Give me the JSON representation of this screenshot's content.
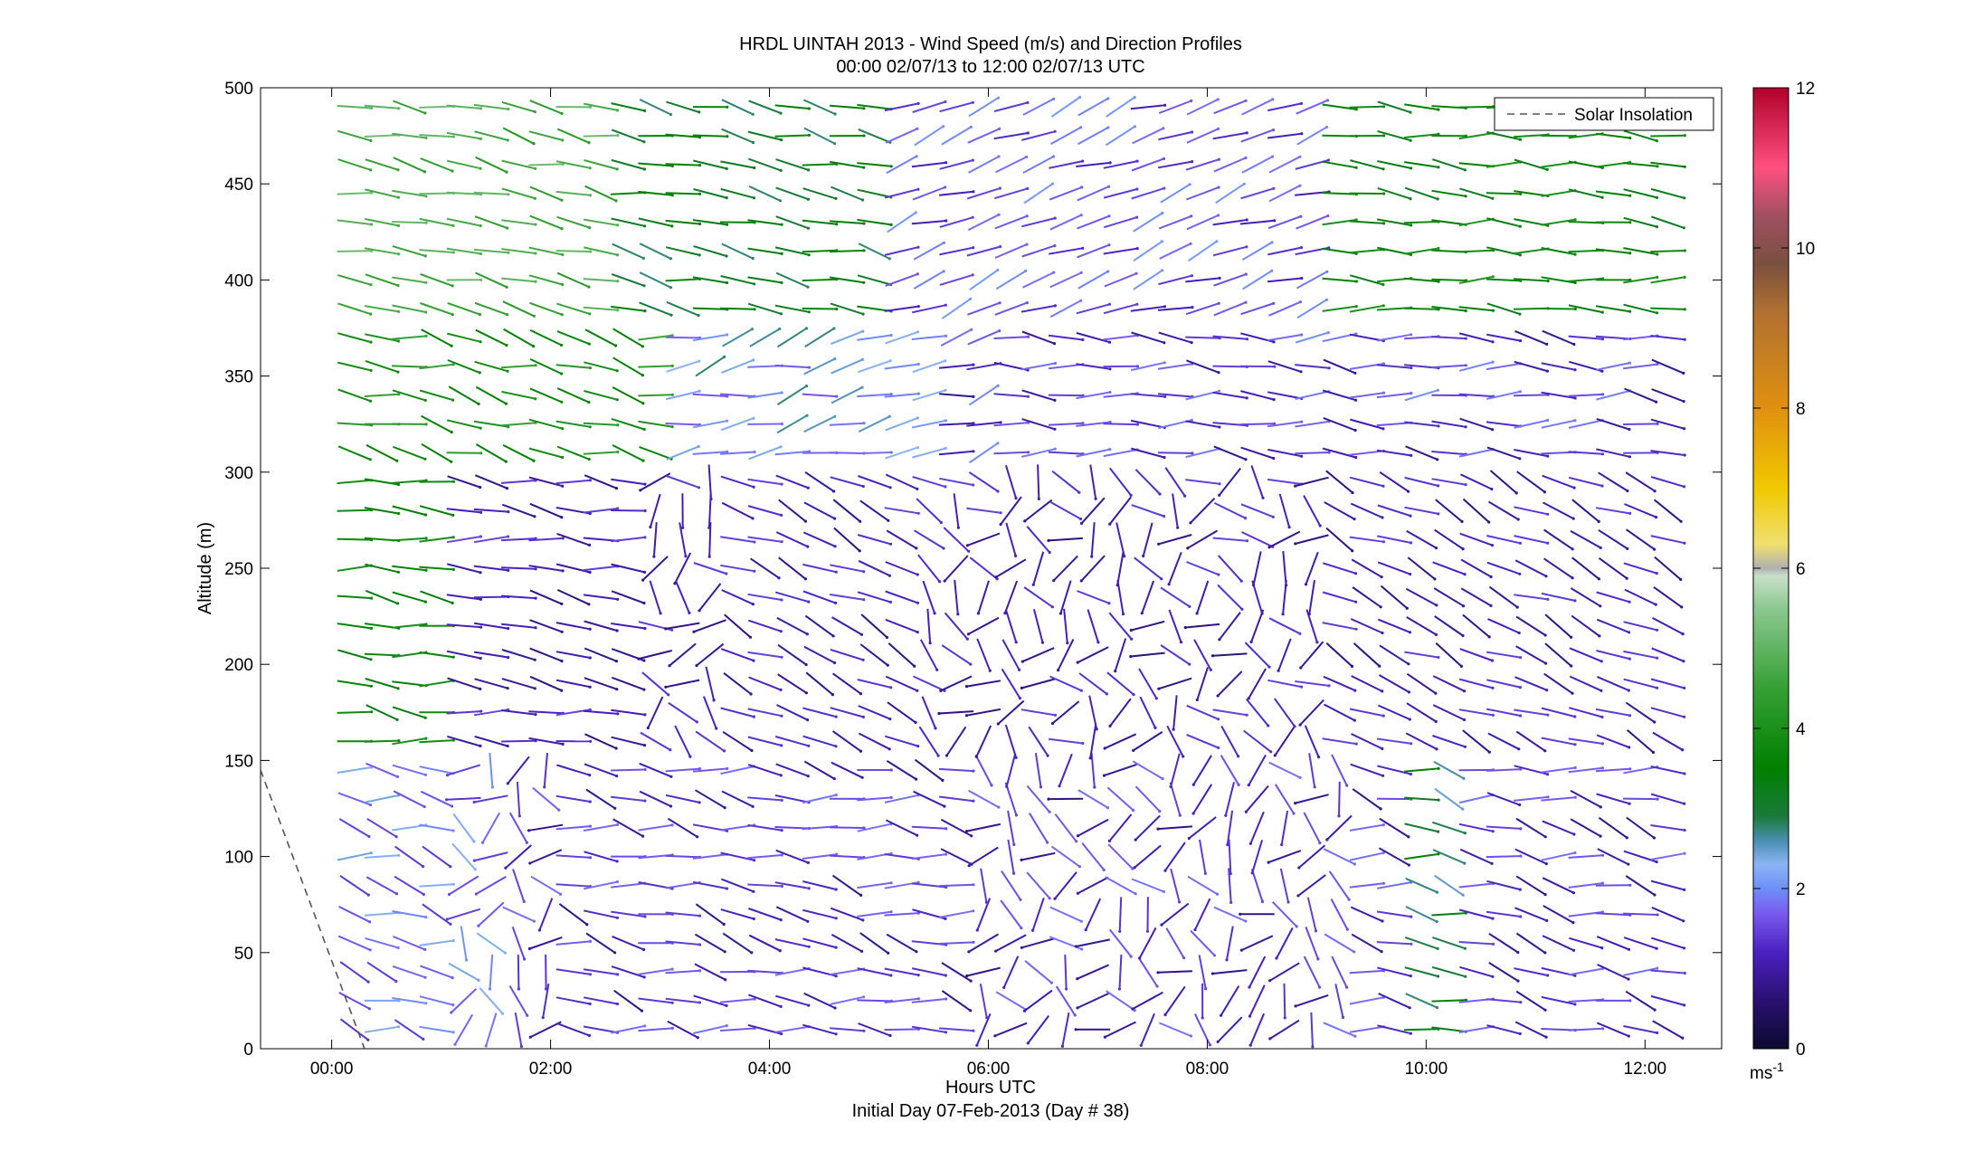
{
  "chart_data": {
    "type": "wind_barb_profile",
    "title": "HRDL UINTAH 2013 - Wind Speed (m/s) and Direction Profiles",
    "subtitle": "00:00 02/07/13 to 12:00 02/07/13  UTC",
    "xlabel": "Hours UTC",
    "xlabel2": "Initial Day 07-Feb-2013 (Day # 38)",
    "ylabel": "Altitude (m)",
    "xlim": [
      -0.65,
      12.7
    ],
    "ylim": [
      0,
      500
    ],
    "x_ticks": [
      0,
      2,
      4,
      6,
      8,
      10,
      12
    ],
    "x_tick_labels": [
      "00:00",
      "02:00",
      "04:00",
      "06:00",
      "08:00",
      "10:00",
      "12:00"
    ],
    "y_ticks": [
      0,
      50,
      100,
      150,
      200,
      250,
      300,
      350,
      400,
      450,
      500
    ],
    "y_tick_labels": [
      "0",
      "50",
      "100",
      "150",
      "200",
      "250",
      "300",
      "350",
      "400",
      "450",
      "500"
    ],
    "legend": {
      "entries": [
        "Solar Insolation"
      ],
      "placement": "top-right"
    },
    "solar_insolation": {
      "x": [
        -0.65,
        0.3
      ],
      "y": [
        145,
        0
      ]
    },
    "colorbar": {
      "range": [
        0,
        12
      ],
      "ticks": [
        0,
        2,
        4,
        6,
        8,
        10,
        12
      ],
      "tick_labels": [
        "0",
        "2",
        "4",
        "6",
        "8",
        "10",
        "12"
      ],
      "unit": "ms",
      "unit_exp": "-1",
      "stops": [
        {
          "v": 0,
          "color": "#0a0a2e"
        },
        {
          "v": 0.6,
          "color": "#2a1070"
        },
        {
          "v": 1.2,
          "color": "#4a20c0"
        },
        {
          "v": 1.7,
          "color": "#7a5cf0"
        },
        {
          "v": 2.0,
          "color": "#6f8ff8"
        },
        {
          "v": 2.3,
          "color": "#8cb4f5"
        },
        {
          "v": 2.6,
          "color": "#4a8eb0"
        },
        {
          "v": 2.9,
          "color": "#1a7a3a"
        },
        {
          "v": 3.5,
          "color": "#008000"
        },
        {
          "v": 4.5,
          "color": "#35a035"
        },
        {
          "v": 5.5,
          "color": "#8cc890"
        },
        {
          "v": 5.9,
          "color": "#c8e0c8"
        },
        {
          "v": 6.0,
          "color": "#b0b0b0"
        },
        {
          "v": 6.3,
          "color": "#f0e070"
        },
        {
          "v": 7.0,
          "color": "#f0c800"
        },
        {
          "v": 8.0,
          "color": "#e09010"
        },
        {
          "v": 9.2,
          "color": "#b07030"
        },
        {
          "v": 9.8,
          "color": "#7a5040"
        },
        {
          "v": 10.4,
          "color": "#a05060"
        },
        {
          "v": 11.0,
          "color": "#ff5080"
        },
        {
          "v": 12.0,
          "color": "#b0002a"
        }
      ]
    },
    "altitudes_m": [
      10,
      25,
      40,
      55,
      70,
      85,
      100,
      115,
      130,
      145,
      160,
      175,
      190,
      205,
      220,
      235,
      250,
      265,
      280,
      295,
      310,
      325,
      340,
      355,
      370,
      385,
      400,
      415,
      430,
      445,
      460,
      475,
      490
    ],
    "times_h": [
      0.0,
      0.25,
      0.5,
      0.75,
      1.0,
      1.25,
      1.5,
      1.75,
      2.0,
      2.25,
      2.5,
      2.75,
      3.0,
      3.25,
      3.5,
      3.75,
      4.0,
      4.25,
      4.5,
      4.75,
      5.0,
      5.25,
      5.5,
      5.75,
      6.0,
      6.25,
      6.5,
      6.75,
      7.0,
      7.25,
      7.5,
      7.75,
      8.0,
      8.25,
      8.5,
      8.75,
      9.0,
      9.25,
      9.5,
      9.75,
      10.0,
      10.25,
      10.5,
      10.75,
      11.0,
      11.25,
      11.5,
      11.75,
      12.0
    ],
    "note": "",
    "speed_grid": [],
    "direction_grid": []
  }
}
